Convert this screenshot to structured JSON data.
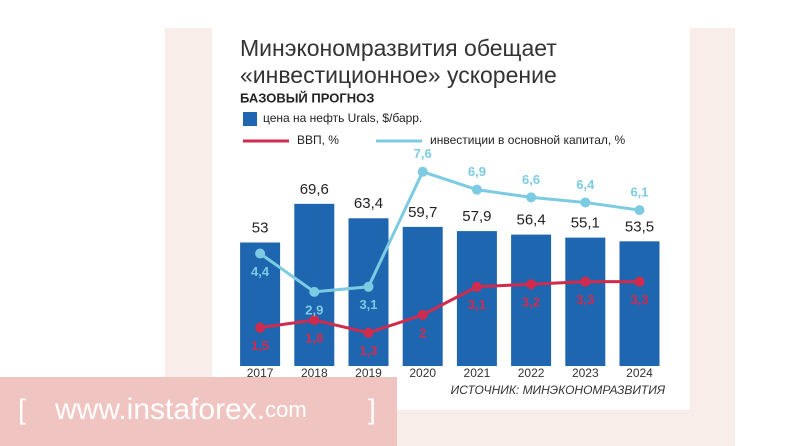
{
  "chart_data": {
    "type": "bar",
    "title": [
      "Минэкономразвития обещает",
      "«инвестиционное» ускорение"
    ],
    "subtitle": "БАЗОВЫЙ ПРОГНОЗ",
    "source": "ИСТОЧНИК: МИНЭКОНОМРАЗВИТИЯ",
    "categories": [
      "2017",
      "2018",
      "2019",
      "2020",
      "2021",
      "2022",
      "2023",
      "2024"
    ],
    "ylim": [
      0,
      100
    ],
    "y2lim": [
      0,
      9
    ],
    "series": [
      {
        "name": "цена на нефть Urals, $/барр.",
        "type": "bar",
        "color": "#1f66b0",
        "values": [
          53,
          69.6,
          63.4,
          59.7,
          57.9,
          56.4,
          55.1,
          53.5
        ],
        "value_labels": [
          "53",
          "69,6",
          "63,4",
          "59,7",
          "57,9",
          "56,4",
          "55,1",
          "53,5"
        ]
      },
      {
        "name": "ВВП, %",
        "type": "line",
        "axis": "y2",
        "color": "#d02a4c",
        "values": [
          1.5,
          1.8,
          1.3,
          2,
          3.1,
          3.2,
          3.3,
          3.3
        ],
        "value_labels": [
          "1,5",
          "1,8",
          "1,3",
          "2",
          "3,1",
          "3,2",
          "3,3",
          "3,3"
        ]
      },
      {
        "name": "инвестиции в основной капитал, %",
        "type": "line",
        "axis": "y2",
        "color": "#7ccbe2",
        "values": [
          4.4,
          2.9,
          3.1,
          7.6,
          6.9,
          6.6,
          6.4,
          6.1
        ],
        "value_labels": [
          "4,4",
          "2,9",
          "3,1",
          "7,6",
          "6,9",
          "6,6",
          "6,4",
          "6,1"
        ]
      }
    ]
  },
  "watermark": {
    "open": "[",
    "text": "www.instaforex.",
    "tld": "com",
    "close": "]"
  }
}
